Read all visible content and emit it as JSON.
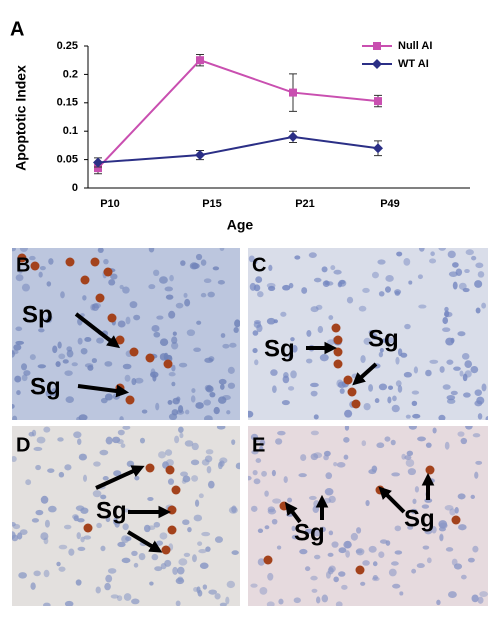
{
  "chart_data": {
    "type": "line",
    "panel_label": "A",
    "y_label": "Apoptotic Index",
    "x_label": "Age",
    "categories": [
      "P10",
      "P15",
      "P21",
      "P49"
    ],
    "series": [
      {
        "name": "Null AI",
        "color": "#c94fb0",
        "marker": "square",
        "values": [
          0.035,
          0.225,
          0.168,
          0.153
        ],
        "errors": [
          0.01,
          0.01,
          0.033,
          0.01
        ]
      },
      {
        "name": "WT AI",
        "color": "#2b2f86",
        "marker": "diamond",
        "values": [
          0.045,
          0.058,
          0.09,
          0.07
        ],
        "errors": [
          0.008,
          0.008,
          0.01,
          0.013
        ]
      }
    ],
    "ylim": [
      0,
      0.25
    ],
    "yticks": [
      0,
      0.05,
      0.1,
      0.15,
      0.2,
      0.25
    ],
    "legend": "upper right"
  },
  "panels": [
    {
      "label": "B",
      "annotations": [
        "Sp",
        "Sg"
      ]
    },
    {
      "label": "C",
      "annotations": [
        "Sg",
        "Sg"
      ]
    },
    {
      "label": "D",
      "annotations": [
        "Sg"
      ]
    },
    {
      "label": "E",
      "annotations": [
        "Sg",
        "Sg"
      ]
    }
  ]
}
